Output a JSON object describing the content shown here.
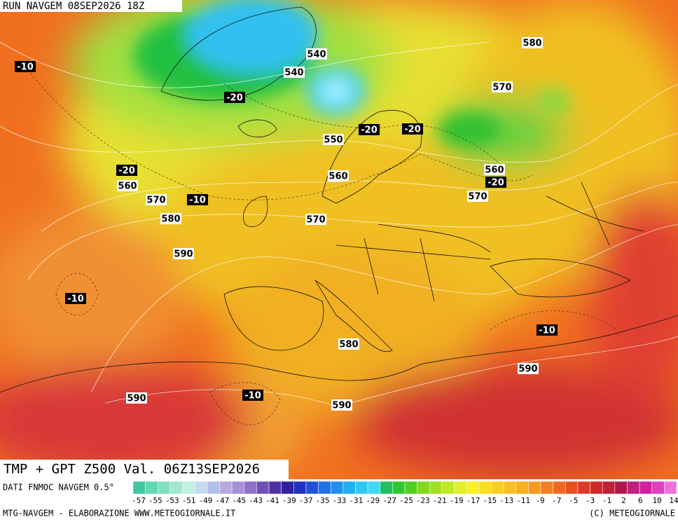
{
  "header": {
    "run": "RUN NAVGEM 08SEP2026 18Z"
  },
  "map": {
    "title": "TMP + GPT Z500 Val. 06Z13SEP2026",
    "height_labels": [
      "540",
      "540",
      "580",
      "570",
      "550",
      "560",
      "560",
      "560",
      "570",
      "570",
      "580",
      "570",
      "590",
      "580",
      "590",
      "590",
      "590"
    ],
    "temperature_labels": [
      "-10",
      "-20",
      "-20",
      "-20",
      "-20",
      "-20",
      "-10",
      "-10",
      "-10",
      "-10"
    ]
  },
  "colorbar": {
    "source": "DATI FNMOC NAVGEM 0.5°",
    "labels": [
      "-57",
      "-55",
      "-53",
      "-51",
      "-49",
      "-47",
      "-45",
      "-43",
      "-41",
      "-39",
      "-37",
      "-35",
      "-33",
      "-31",
      "-29",
      "-27",
      "-25",
      "-23",
      "-21",
      "-19",
      "-17",
      "-15",
      "-13",
      "-11",
      "-9",
      "-7",
      "-5",
      "-3",
      "-1",
      "2",
      "6",
      "10",
      "14"
    ]
  },
  "footer": {
    "left": "MTG-NAVGEM - ELABORAZIONE WWW.METEOGIORNALE.IT",
    "right": "(C) METEOGIORNALE"
  }
}
